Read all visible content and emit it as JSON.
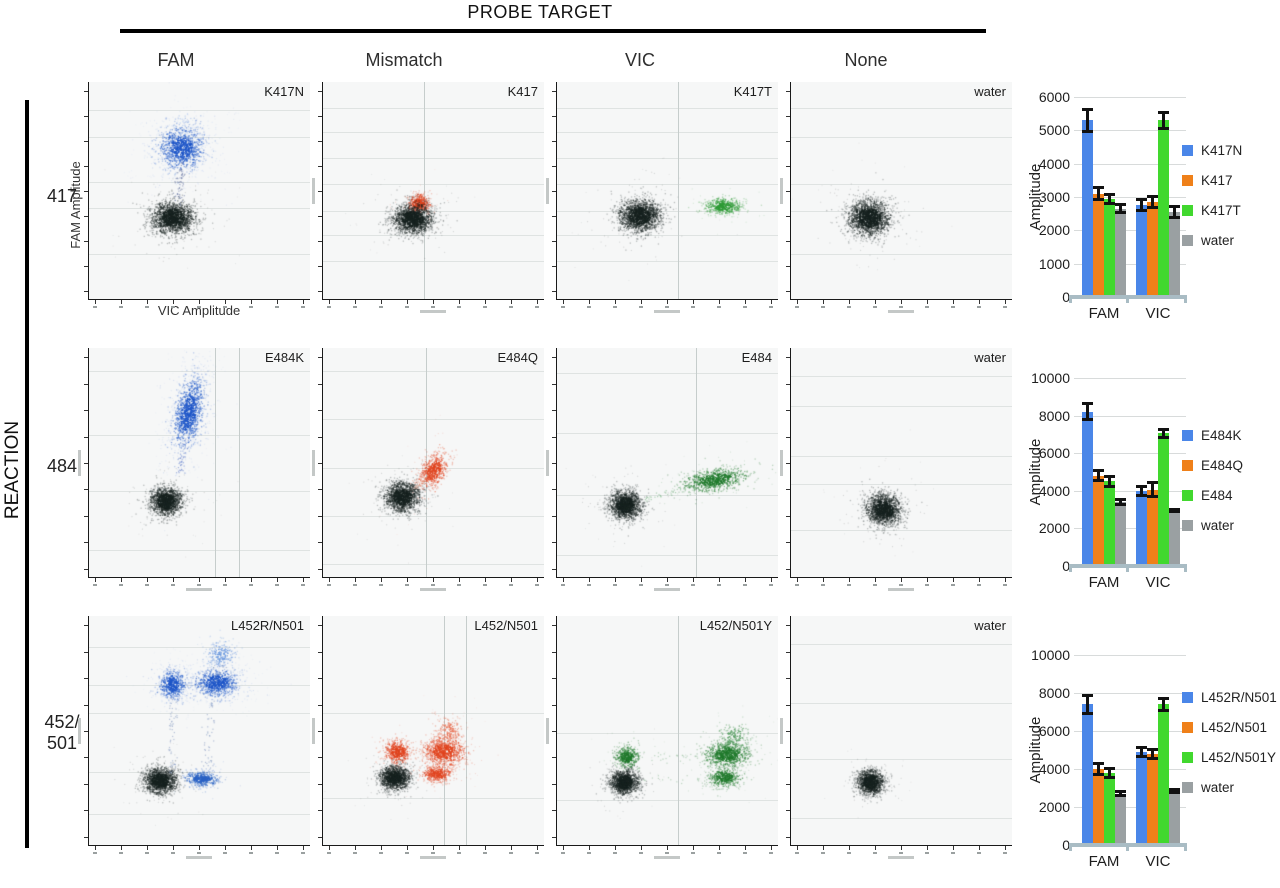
{
  "header": {
    "probe_target": "PROBE TARGET",
    "reaction": "REACTION"
  },
  "columns": [
    "FAM",
    "Mismatch",
    "VIC",
    "None"
  ],
  "rows": [
    {
      "label": "417"
    },
    {
      "label": "484"
    },
    {
      "label": "452/\n501"
    }
  ],
  "axes": {
    "y_label": "FAM Amplitude",
    "x_label": "VIC Amplitude"
  },
  "colors": {
    "bar_blue": "#4a86e8",
    "bar_orange": "#ef8019",
    "bar_green": "#41d82e",
    "bar_gray": "#9aa0a2",
    "error_bar": "#111111",
    "panel_bg": "#f6f7f7",
    "grid_h": "#dfe3e2",
    "grid_v": "#c6cdcc",
    "scatter_blue": "#1e56c8",
    "scatter_blue_halo": "#8fb3ea",
    "scatter_orange": "#e1441f",
    "scatter_green": "#1f7a2b",
    "scatter_dark": "#17221f"
  },
  "chart_data": [
    {
      "type": "scatter-clusters",
      "reaction": "417",
      "probe_target": "FAM",
      "title": "K417N",
      "units": "fraction of panel, y from top",
      "grid": {
        "h": [
          0.13,
          0.25,
          0.46,
          0.58,
          0.79
        ],
        "v": []
      },
      "clusters": [
        {
          "x": 0.42,
          "y": 0.3,
          "rx": 0.05,
          "ry": 0.048,
          "n": 900,
          "color": "#1e56c8",
          "halo": "#8fb3ea"
        },
        {
          "x": 0.38,
          "y": 0.62,
          "rx": 0.052,
          "ry": 0.04,
          "n": 1500,
          "color": "#17221f"
        }
      ],
      "trails": [
        {
          "x1": 0.42,
          "y1": 0.37,
          "x2": 0.4,
          "y2": 0.56,
          "n": 60,
          "color": "#5b6a9a",
          "jx": 0.012
        },
        {
          "x1": 0.43,
          "y1": 0.16,
          "x2": 0.42,
          "y2": 0.23,
          "n": 22,
          "color": "#8fb3ea",
          "jx": 0.02
        }
      ]
    },
    {
      "type": "scatter-clusters",
      "reaction": "417",
      "probe_target": "Mismatch",
      "title": "K417",
      "grid": {
        "h": [
          0.12,
          0.23,
          0.35,
          0.47,
          0.59,
          0.7,
          0.82
        ],
        "v": [
          0.46
        ]
      },
      "clusters": [
        {
          "x": 0.435,
          "y": 0.555,
          "rx": 0.026,
          "ry": 0.022,
          "n": 380,
          "color": "#e1441f"
        },
        {
          "x": 0.405,
          "y": 0.625,
          "rx": 0.048,
          "ry": 0.036,
          "n": 1500,
          "color": "#17221f"
        }
      ],
      "trails": []
    },
    {
      "type": "scatter-clusters",
      "reaction": "417",
      "probe_target": "VIC",
      "title": "K417T",
      "grid": {
        "h": [
          0.12,
          0.23,
          0.35,
          0.47,
          0.59,
          0.7,
          0.82
        ],
        "v": [
          0.55
        ]
      },
      "clusters": [
        {
          "x": 0.375,
          "y": 0.61,
          "rx": 0.05,
          "ry": 0.04,
          "n": 1500,
          "color": "#17221f"
        },
        {
          "x": 0.75,
          "y": 0.567,
          "rx": 0.042,
          "ry": 0.02,
          "n": 450,
          "color": "#2e9a35"
        }
      ],
      "trails": []
    },
    {
      "type": "scatter-clusters",
      "reaction": "417",
      "probe_target": "None",
      "title": "water",
      "grid": {
        "h": [
          0.12,
          0.25,
          0.47,
          0.59,
          0.79
        ],
        "v": []
      },
      "clusters": [
        {
          "x": 0.355,
          "y": 0.62,
          "rx": 0.05,
          "ry": 0.044,
          "n": 1600,
          "color": "#17221f"
        }
      ],
      "trails": []
    },
    {
      "type": "scatter-clusters",
      "reaction": "484",
      "probe_target": "FAM",
      "title": "E484K",
      "grid": {
        "h": [
          0.1,
          0.38,
          0.62,
          0.88
        ],
        "v": [
          0.57,
          0.68
        ]
      },
      "clusters": [
        {
          "x": 0.45,
          "y": 0.28,
          "rx": 0.032,
          "ry": 0.075,
          "rot": 12,
          "n": 950,
          "color": "#1e56c8",
          "halo": "#8fb3ea"
        },
        {
          "x": 0.35,
          "y": 0.665,
          "rx": 0.038,
          "ry": 0.033,
          "n": 1300,
          "color": "#17221f"
        }
      ],
      "trails": [
        {
          "x1": 0.435,
          "y1": 0.4,
          "x2": 0.41,
          "y2": 0.54,
          "n": 45,
          "color": "#5b79c8",
          "jx": 0.01
        }
      ]
    },
    {
      "type": "scatter-clusters",
      "reaction": "484",
      "probe_target": "Mismatch",
      "title": "E484Q",
      "grid": {
        "h": [
          0.1,
          0.31,
          0.52,
          0.73,
          0.94
        ],
        "v": [
          0.47
        ]
      },
      "clusters": [
        {
          "x": 0.5,
          "y": 0.53,
          "rx": 0.028,
          "ry": 0.045,
          "rot": 30,
          "n": 520,
          "color": "#e1441f"
        },
        {
          "x": 0.36,
          "y": 0.645,
          "rx": 0.042,
          "ry": 0.034,
          "n": 1300,
          "color": "#17221f"
        }
      ],
      "trails": [
        {
          "x1": 0.41,
          "y1": 0.615,
          "x2": 0.465,
          "y2": 0.565,
          "n": 20,
          "color": "#d98a6e",
          "jx": 0.008
        }
      ]
    },
    {
      "type": "scatter-clusters",
      "reaction": "484",
      "probe_target": "VIC",
      "title": "E484",
      "grid": {
        "h": [
          0.11,
          0.37,
          0.64,
          0.9
        ],
        "v": [
          0.63
        ]
      },
      "clusters": [
        {
          "x": 0.715,
          "y": 0.57,
          "rx": 0.075,
          "ry": 0.024,
          "rot": -10,
          "n": 750,
          "color": "#1f7a2b"
        },
        {
          "x": 0.31,
          "y": 0.68,
          "rx": 0.04,
          "ry": 0.034,
          "n": 1300,
          "color": "#17221f"
        }
      ],
      "trails": [
        {
          "x1": 0.38,
          "y1": 0.66,
          "x2": 0.6,
          "y2": 0.605,
          "n": 35,
          "color": "#6fae7a",
          "jx": 0.008
        }
      ]
    },
    {
      "type": "scatter-clusters",
      "reaction": "484",
      "probe_target": "None",
      "title": "water",
      "grid": {
        "h": [
          0.12,
          0.25,
          0.47,
          0.59,
          0.79
        ],
        "v": []
      },
      "clusters": [
        {
          "x": 0.42,
          "y": 0.7,
          "rx": 0.042,
          "ry": 0.036,
          "rot": 20,
          "n": 1400,
          "color": "#17221f"
        }
      ],
      "trails": []
    },
    {
      "type": "scatter-clusters",
      "reaction": "452/501",
      "probe_target": "FAM",
      "title": "L452R/N501",
      "grid": {
        "h": [
          0.135,
          0.3,
          0.42,
          0.68,
          0.86
        ],
        "v": []
      },
      "clusters": [
        {
          "x": 0.378,
          "y": 0.296,
          "rx": 0.03,
          "ry": 0.03,
          "n": 480,
          "color": "#1e56c8",
          "halo": "#8fb3ea"
        },
        {
          "x": 0.576,
          "y": 0.288,
          "rx": 0.048,
          "ry": 0.03,
          "n": 680,
          "color": "#1e56c8",
          "halo": "#8fb3ea"
        },
        {
          "x": 0.6,
          "y": 0.167,
          "rx": 0.035,
          "ry": 0.03,
          "n": 200,
          "color": "#6f9be0"
        },
        {
          "x": 0.51,
          "y": 0.705,
          "rx": 0.038,
          "ry": 0.018,
          "n": 420,
          "color": "#2a62c4"
        },
        {
          "x": 0.324,
          "y": 0.713,
          "rx": 0.04,
          "ry": 0.03,
          "n": 1300,
          "color": "#17221f"
        }
      ],
      "trails": [
        {
          "x1": 0.38,
          "y1": 0.34,
          "x2": 0.38,
          "y2": 0.68,
          "n": 55,
          "color": "#7d93bd",
          "jx": 0.012
        },
        {
          "x1": 0.555,
          "y1": 0.33,
          "x2": 0.53,
          "y2": 0.68,
          "n": 55,
          "color": "#7d93bd",
          "jx": 0.015
        },
        {
          "x1": 0.6,
          "y1": 0.21,
          "x2": 0.565,
          "y2": 0.29,
          "n": 18,
          "color": "#7d93bd",
          "jx": 0.012
        }
      ]
    },
    {
      "type": "scatter-clusters",
      "reaction": "452/501",
      "probe_target": "Mismatch",
      "title": "L452/N501",
      "grid": {
        "h": [
          0.42,
          0.79
        ],
        "v": [
          0.55,
          0.65
        ]
      },
      "clusters": [
        {
          "x": 0.338,
          "y": 0.588,
          "rx": 0.03,
          "ry": 0.026,
          "n": 470,
          "color": "#e1441f"
        },
        {
          "x": 0.546,
          "y": 0.588,
          "rx": 0.048,
          "ry": 0.032,
          "n": 820,
          "color": "#e1441f"
        },
        {
          "x": 0.567,
          "y": 0.5,
          "rx": 0.032,
          "ry": 0.032,
          "n": 180,
          "color": "#e8765a"
        },
        {
          "x": 0.514,
          "y": 0.685,
          "rx": 0.034,
          "ry": 0.018,
          "n": 380,
          "color": "#e1441f"
        },
        {
          "x": 0.324,
          "y": 0.7,
          "rx": 0.036,
          "ry": 0.028,
          "n": 1200,
          "color": "#17221f"
        }
      ],
      "trails": [
        {
          "x1": 0.39,
          "y1": 0.59,
          "x2": 0.49,
          "y2": 0.588,
          "n": 25,
          "color": "#e89a84",
          "jx": 0.008,
          "jy": 0.012
        },
        {
          "x1": 0.55,
          "y1": 0.53,
          "x2": 0.535,
          "y2": 0.66,
          "n": 30,
          "color": "#e89a84",
          "jx": 0.012
        }
      ]
    },
    {
      "type": "scatter-clusters",
      "reaction": "452/501",
      "probe_target": "VIC",
      "title": "L452/N501Y",
      "grid": {
        "h": [
          0.51,
          0.8
        ],
        "v": [
          0.55
        ]
      },
      "clusters": [
        {
          "x": 0.317,
          "y": 0.61,
          "rx": 0.028,
          "ry": 0.024,
          "n": 420,
          "color": "#1f7a2b"
        },
        {
          "x": 0.306,
          "y": 0.72,
          "rx": 0.034,
          "ry": 0.028,
          "n": 1200,
          "color": "#17221f"
        },
        {
          "x": 0.768,
          "y": 0.6,
          "rx": 0.052,
          "ry": 0.028,
          "n": 800,
          "color": "#1f7a2b"
        },
        {
          "x": 0.757,
          "y": 0.7,
          "rx": 0.038,
          "ry": 0.022,
          "n": 420,
          "color": "#1f7a2b"
        },
        {
          "x": 0.8,
          "y": 0.52,
          "rx": 0.038,
          "ry": 0.034,
          "n": 160,
          "color": "#5aa065"
        }
      ],
      "trails": [
        {
          "x1": 0.37,
          "y1": 0.615,
          "x2": 0.69,
          "y2": 0.608,
          "n": 30,
          "color": "#8fbc97",
          "jx": 0.01,
          "jy": 0.012
        },
        {
          "x1": 0.37,
          "y1": 0.715,
          "x2": 0.69,
          "y2": 0.705,
          "n": 20,
          "color": "#8fbc97",
          "jx": 0.01,
          "jy": 0.01
        }
      ]
    },
    {
      "type": "scatter-clusters",
      "reaction": "452/501",
      "probe_target": "None",
      "title": "water",
      "grid": {
        "h": [
          0.12,
          0.38,
          0.62,
          0.88
        ],
        "v": []
      },
      "clusters": [
        {
          "x": 0.36,
          "y": 0.72,
          "rx": 0.032,
          "ry": 0.028,
          "n": 1200,
          "color": "#17221f"
        }
      ],
      "trails": []
    },
    {
      "type": "bar",
      "reaction": "417",
      "ylabel": "Amplitude",
      "categories": [
        "FAM",
        "VIC"
      ],
      "ymax": 6000,
      "ystep": 1000,
      "legend_position": "right",
      "grid": "horizontal",
      "series": [
        {
          "name": "K417N",
          "color": "#4a86e8",
          "values": [
            5300,
            2750
          ],
          "errors": [
            350,
            180
          ]
        },
        {
          "name": "K417",
          "color": "#ef8019",
          "values": [
            3100,
            2850
          ],
          "errors": [
            200,
            180
          ]
        },
        {
          "name": "K417T",
          "color": "#41d82e",
          "values": [
            2950,
            5300
          ],
          "errors": [
            150,
            250
          ]
        },
        {
          "name": "water",
          "color": "#9aa0a2",
          "values": [
            2650,
            2550
          ],
          "errors": [
            130,
            170
          ]
        }
      ]
    },
    {
      "type": "bar",
      "reaction": "484",
      "ylabel": "Amplitude",
      "categories": [
        "FAM",
        "VIC"
      ],
      "ymax": 10000,
      "ystep": 2000,
      "legend_position": "right",
      "grid": "horizontal",
      "series": [
        {
          "name": "E484K",
          "color": "#4a86e8",
          "values": [
            8200,
            4000
          ],
          "errors": [
            450,
            250
          ]
        },
        {
          "name": "E484Q",
          "color": "#ef8019",
          "values": [
            4800,
            4050
          ],
          "errors": [
            300,
            400
          ]
        },
        {
          "name": "E484",
          "color": "#41d82e",
          "values": [
            4500,
            7050
          ],
          "errors": [
            300,
            250
          ]
        },
        {
          "name": "water",
          "color": "#9aa0a2",
          "values": [
            3400,
            2950
          ],
          "errors": [
            150,
            80
          ]
        }
      ]
    },
    {
      "type": "bar",
      "reaction": "452/501",
      "ylabel": "Amplitude",
      "categories": [
        "FAM",
        "VIC"
      ],
      "ymax": 10000,
      "ystep": 2000,
      "legend_position": "right",
      "grid": "horizontal",
      "series": [
        {
          "name": "L452R/N501",
          "color": "#4a86e8",
          "values": [
            7400,
            4900
          ],
          "errors": [
            500,
            250
          ]
        },
        {
          "name": "L452/N501",
          "color": "#ef8019",
          "values": [
            4000,
            4800
          ],
          "errors": [
            300,
            250
          ]
        },
        {
          "name": "L452/N501Y",
          "color": "#41d82e",
          "values": [
            3800,
            7400
          ],
          "errors": [
            250,
            350
          ]
        },
        {
          "name": "water",
          "color": "#9aa0a2",
          "values": [
            2700,
            2850
          ],
          "errors": [
            120,
            100
          ]
        }
      ]
    }
  ]
}
